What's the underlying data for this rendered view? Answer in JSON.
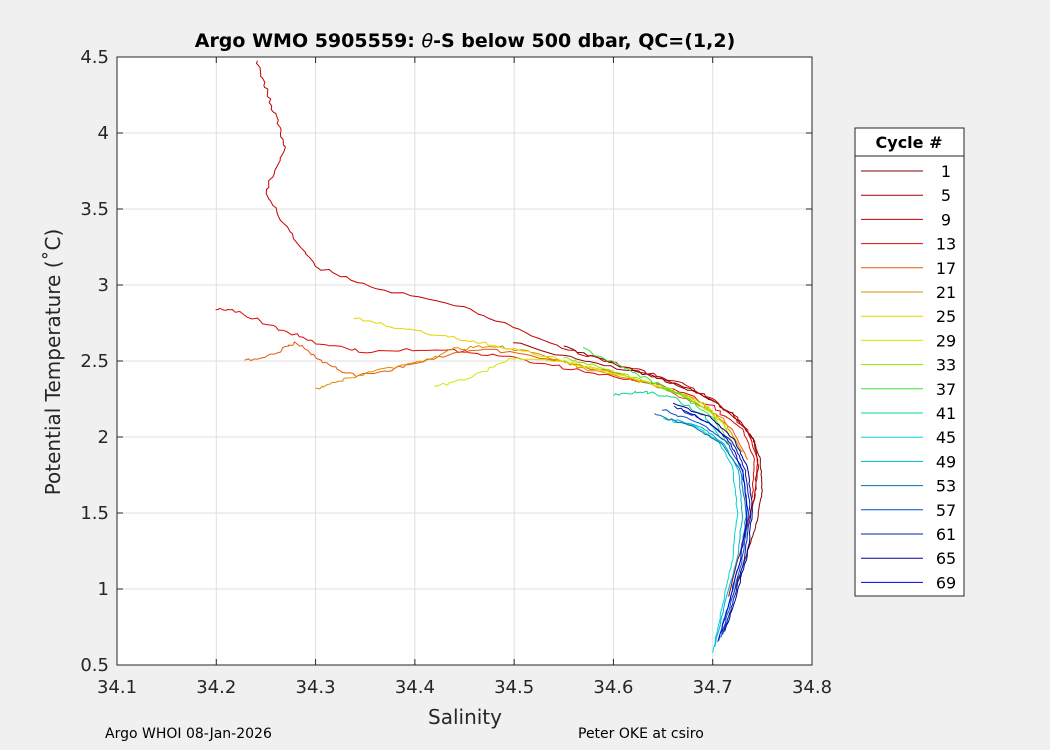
{
  "chart_data": {
    "type": "line",
    "title": "Argo WMO 5905559: θ-S below 500 dbar,  QC=(1,2)",
    "title_prefix": "Argo WMO 5905559: ",
    "title_theta": "θ",
    "title_suffix": "-S below 500 dbar,  QC=(1,2)",
    "xlabel": "Salinity",
    "ylabel": "Potential Temperature (˚C)",
    "xlim": [
      34.1,
      34.8
    ],
    "ylim": [
      0.5,
      4.5
    ],
    "xticks": [
      34.1,
      34.2,
      34.3,
      34.4,
      34.5,
      34.6,
      34.7,
      34.8
    ],
    "yticks": [
      0.5,
      1,
      1.5,
      2,
      2.5,
      3,
      3.5,
      4,
      4.5
    ],
    "xtick_labels": [
      "34.1",
      "34.2",
      "34.3",
      "34.4",
      "34.5",
      "34.6",
      "34.7",
      "34.8"
    ],
    "ytick_labels": [
      "0.5",
      "1",
      "1.5",
      "2",
      "2.5",
      "3",
      "3.5",
      "4",
      "4.5"
    ],
    "grid": true,
    "legend": {
      "title": "Cycle #",
      "position": "outside-right",
      "entries": [
        {
          "label": "1",
          "color": "#800000"
        },
        {
          "label": "5",
          "color": "#9c0000"
        },
        {
          "label": "9",
          "color": "#c40000"
        },
        {
          "label": "13",
          "color": "#e00808"
        },
        {
          "label": "17",
          "color": "#e85a08"
        },
        {
          "label": "21",
          "color": "#d89000"
        },
        {
          "label": "25",
          "color": "#e6d400"
        },
        {
          "label": "29",
          "color": "#d4e600"
        },
        {
          "label": "33",
          "color": "#8ee600"
        },
        {
          "label": "37",
          "color": "#40e040"
        },
        {
          "label": "41",
          "color": "#00d890"
        },
        {
          "label": "45",
          "color": "#00d4d4"
        },
        {
          "label": "49",
          "color": "#00b0d0"
        },
        {
          "label": "53",
          "color": "#0070a8"
        },
        {
          "label": "57",
          "color": "#0050c8"
        },
        {
          "label": "61",
          "color": "#0020b0"
        },
        {
          "label": "65",
          "color": "#00008c"
        },
        {
          "label": "69",
          "color": "#0000e0"
        }
      ]
    },
    "series": [
      {
        "name": "1",
        "color": "#800000",
        "x": [
          34.55,
          34.6,
          34.65,
          34.69,
          34.72,
          34.74,
          34.748,
          34.75,
          34.745,
          34.735,
          34.72
        ],
        "y": [
          2.6,
          2.48,
          2.38,
          2.28,
          2.15,
          2.0,
          1.85,
          1.65,
          1.45,
          1.25,
          0.95
        ]
      },
      {
        "name": "5",
        "color": "#9c0000",
        "x": [
          34.5,
          34.57,
          34.64,
          34.69,
          34.725,
          34.742,
          34.746,
          34.742,
          34.73,
          34.716
        ],
        "y": [
          2.62,
          2.5,
          2.4,
          2.28,
          2.13,
          1.97,
          1.8,
          1.6,
          1.3,
          0.95
        ]
      },
      {
        "name": "9",
        "color": "#c40000",
        "x": [
          34.24,
          34.25,
          34.26,
          34.27,
          34.25,
          34.27,
          34.3,
          34.36,
          34.45,
          34.5,
          34.56,
          34.62,
          34.67,
          34.705,
          34.735,
          34.745,
          34.742,
          34.73
        ],
        "y": [
          4.48,
          4.3,
          4.1,
          3.9,
          3.62,
          3.38,
          3.12,
          2.98,
          2.85,
          2.72,
          2.56,
          2.45,
          2.35,
          2.22,
          2.05,
          1.85,
          1.6,
          1.3
        ]
      },
      {
        "name": "13",
        "color": "#e00808",
        "x": [
          34.2,
          34.22,
          34.26,
          34.3,
          34.35,
          34.42,
          34.48,
          34.53,
          34.6,
          34.66,
          34.7,
          34.73,
          34.742,
          34.74
        ],
        "y": [
          2.84,
          2.83,
          2.72,
          2.62,
          2.56,
          2.58,
          2.54,
          2.48,
          2.4,
          2.32,
          2.2,
          2.05,
          1.85,
          1.6
        ]
      },
      {
        "name": "17",
        "color": "#e85a08",
        "x": [
          34.23,
          34.26,
          34.28,
          34.31,
          34.34,
          34.38,
          34.42,
          34.47,
          34.53,
          34.6,
          34.65,
          34.69,
          34.72,
          34.735
        ],
        "y": [
          2.5,
          2.55,
          2.62,
          2.48,
          2.4,
          2.45,
          2.52,
          2.58,
          2.52,
          2.42,
          2.32,
          2.2,
          2.05,
          1.85
        ]
      },
      {
        "name": "21",
        "color": "#d89000",
        "x": [
          34.3,
          34.33,
          34.37,
          34.41,
          34.44,
          34.48,
          34.52,
          34.57,
          34.63,
          34.68,
          34.71,
          34.73
        ],
        "y": [
          2.32,
          2.38,
          2.45,
          2.5,
          2.58,
          2.6,
          2.55,
          2.45,
          2.36,
          2.26,
          2.12,
          1.9
        ]
      },
      {
        "name": "25",
        "color": "#e6d400",
        "x": [
          34.34,
          34.38,
          34.43,
          34.47,
          34.52,
          34.58,
          34.64,
          34.68,
          34.71,
          34.725
        ],
        "y": [
          2.78,
          2.72,
          2.66,
          2.62,
          2.55,
          2.45,
          2.35,
          2.25,
          2.1,
          1.9
        ]
      },
      {
        "name": "29",
        "color": "#d4e600",
        "x": [
          34.42,
          34.46,
          34.5,
          34.55,
          34.6,
          34.65,
          34.69,
          34.715
        ],
        "y": [
          2.33,
          2.4,
          2.52,
          2.5,
          2.42,
          2.33,
          2.22,
          2.05
        ]
      },
      {
        "name": "33",
        "color": "#8ee600",
        "x": [
          34.55,
          34.59,
          34.63,
          34.67,
          34.7,
          34.718
        ],
        "y": [
          2.52,
          2.45,
          2.37,
          2.28,
          2.15,
          1.95
        ]
      },
      {
        "name": "37",
        "color": "#40e040",
        "x": [
          34.57,
          34.61,
          34.64,
          34.67,
          34.7,
          34.715
        ],
        "y": [
          2.58,
          2.46,
          2.36,
          2.27,
          2.13,
          1.95
        ]
      },
      {
        "name": "41",
        "color": "#00d890",
        "x": [
          34.6,
          34.63,
          34.66,
          34.69,
          34.71
        ],
        "y": [
          2.28,
          2.3,
          2.26,
          2.15,
          1.98
        ]
      },
      {
        "name": "45",
        "color": "#00d4d4",
        "x": [
          34.65,
          34.68,
          34.705,
          34.72,
          34.725,
          34.72,
          34.71,
          34.7
        ],
        "y": [
          2.12,
          2.08,
          1.98,
          1.8,
          1.5,
          1.2,
          0.9,
          0.58
        ]
      },
      {
        "name": "49",
        "color": "#00b0d0",
        "x": [
          34.66,
          34.69,
          34.712,
          34.726,
          34.73,
          34.725,
          34.712,
          34.702
        ],
        "y": [
          2.12,
          2.06,
          1.95,
          1.78,
          1.5,
          1.2,
          0.9,
          0.62
        ]
      },
      {
        "name": "53",
        "color": "#0070a8",
        "x": [
          34.64,
          34.68,
          34.71,
          34.728,
          34.734,
          34.728,
          34.716,
          34.705
        ],
        "y": [
          2.15,
          2.07,
          1.95,
          1.78,
          1.5,
          1.2,
          0.9,
          0.65
        ]
      },
      {
        "name": "57",
        "color": "#0050c8",
        "x": [
          34.65,
          34.69,
          34.715,
          34.73,
          34.736,
          34.73,
          34.718,
          34.708
        ],
        "y": [
          2.18,
          2.08,
          1.96,
          1.78,
          1.5,
          1.2,
          0.9,
          0.68
        ]
      },
      {
        "name": "61",
        "color": "#0020b0",
        "x": [
          34.66,
          34.695,
          34.72,
          34.733,
          34.738,
          34.732,
          34.72,
          34.71
        ],
        "y": [
          2.2,
          2.1,
          1.97,
          1.78,
          1.5,
          1.2,
          0.9,
          0.7
        ]
      },
      {
        "name": "65",
        "color": "#00008c",
        "x": [
          34.66,
          34.7,
          34.722,
          34.735,
          34.74,
          34.735,
          34.722,
          34.712
        ],
        "y": [
          2.22,
          2.12,
          1.98,
          1.8,
          1.52,
          1.22,
          0.92,
          0.72
        ]
      },
      {
        "name": "69",
        "color": "#0000e0",
        "x": [
          34.67,
          34.7,
          34.718,
          34.73,
          34.735,
          34.728,
          34.716,
          34.706
        ],
        "y": [
          2.18,
          2.08,
          1.96,
          1.78,
          1.5,
          1.2,
          0.9,
          0.66
        ]
      }
    ]
  },
  "footer": {
    "left": "Argo WHOI 08-Jan-2026",
    "right": "Peter OKE at csiro"
  }
}
